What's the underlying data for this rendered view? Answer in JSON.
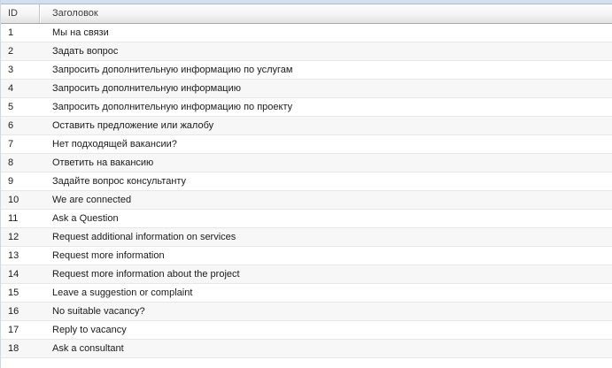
{
  "table": {
    "columns": [
      {
        "key": "id",
        "label": "ID"
      },
      {
        "key": "title",
        "label": "Заголовок"
      }
    ],
    "rows": [
      {
        "id": "1",
        "title": "Мы на связи"
      },
      {
        "id": "2",
        "title": "Задать вопрос"
      },
      {
        "id": "3",
        "title": "Запросить дополнительную информацию по услугам"
      },
      {
        "id": "4",
        "title": "Запросить дополнительную информацию"
      },
      {
        "id": "5",
        "title": "Запросить дополнительную информацию по проекту"
      },
      {
        "id": "6",
        "title": "Оставить предложение или жалобу"
      },
      {
        "id": "7",
        "title": "Нет подходящей вакансии?"
      },
      {
        "id": "8",
        "title": "Ответить на вакансию"
      },
      {
        "id": "9",
        "title": "Задайте вопрос консультанту"
      },
      {
        "id": "10",
        "title": "We are connected"
      },
      {
        "id": "11",
        "title": "Ask a Question"
      },
      {
        "id": "12",
        "title": "Request additional information on services"
      },
      {
        "id": "13",
        "title": "Request more information"
      },
      {
        "id": "14",
        "title": "Request more information about the project"
      },
      {
        "id": "15",
        "title": "Leave a suggestion or complaint"
      },
      {
        "id": "16",
        "title": "No suitable vacancy?"
      },
      {
        "id": "17",
        "title": "Reply to vacancy"
      },
      {
        "id": "18",
        "title": "Ask a consultant"
      }
    ]
  },
  "colors": {
    "top_strip": "#d2dfee",
    "top_strip_border": "#a9bdd5",
    "header_gradient_top": "#fdfdfd",
    "header_gradient_bottom": "#e3e3e3",
    "header_bottom_border": "#a5a5a5",
    "header_separator": "#c6c6c6",
    "row_background": "#ffffff",
    "row_alt_background": "#f7f7f7",
    "row_border": "#e7e7e7",
    "left_border": "#ccd5e0",
    "header_text": "#3c3c3c",
    "cell_text": "#1b1b1b"
  }
}
